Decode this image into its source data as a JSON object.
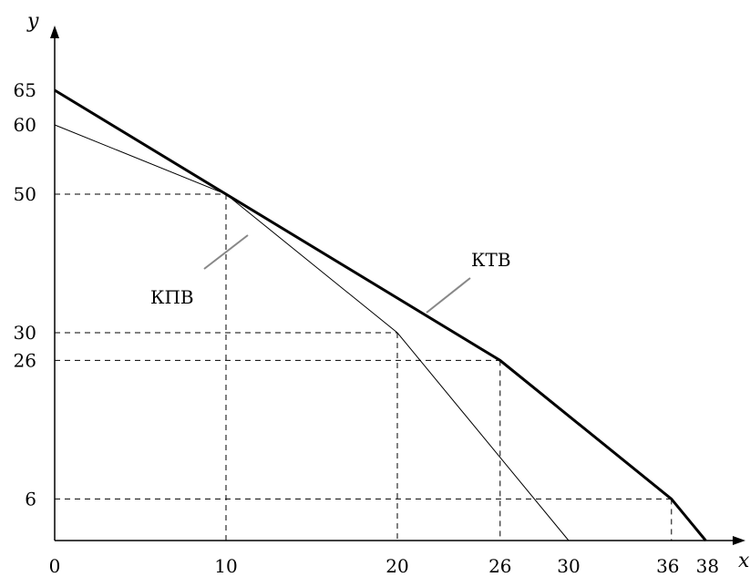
{
  "chart_data": {
    "type": "line",
    "xlabel": "x",
    "ylabel": "y",
    "xlim": [
      0,
      40
    ],
    "ylim": [
      0,
      70
    ],
    "grid": false,
    "x_ticks": [
      0,
      10,
      20,
      26,
      30,
      36,
      38
    ],
    "y_ticks": [
      6,
      26,
      30,
      50,
      60,
      65
    ],
    "series": [
      {
        "name": "КПВ",
        "points": [
          [
            0,
            60
          ],
          [
            10,
            50
          ],
          [
            20,
            30
          ],
          [
            30,
            0
          ]
        ]
      },
      {
        "name": "КТВ",
        "points": [
          [
            0,
            65
          ],
          [
            26,
            26
          ],
          [
            36,
            6
          ],
          [
            38,
            0
          ]
        ]
      }
    ],
    "reference_points": [
      [
        10,
        50
      ],
      [
        20,
        30
      ],
      [
        26,
        26
      ],
      [
        36,
        6
      ]
    ],
    "colors": {
      "axis": "#000000",
      "guide": "#000000",
      "leader": "#888888"
    }
  }
}
